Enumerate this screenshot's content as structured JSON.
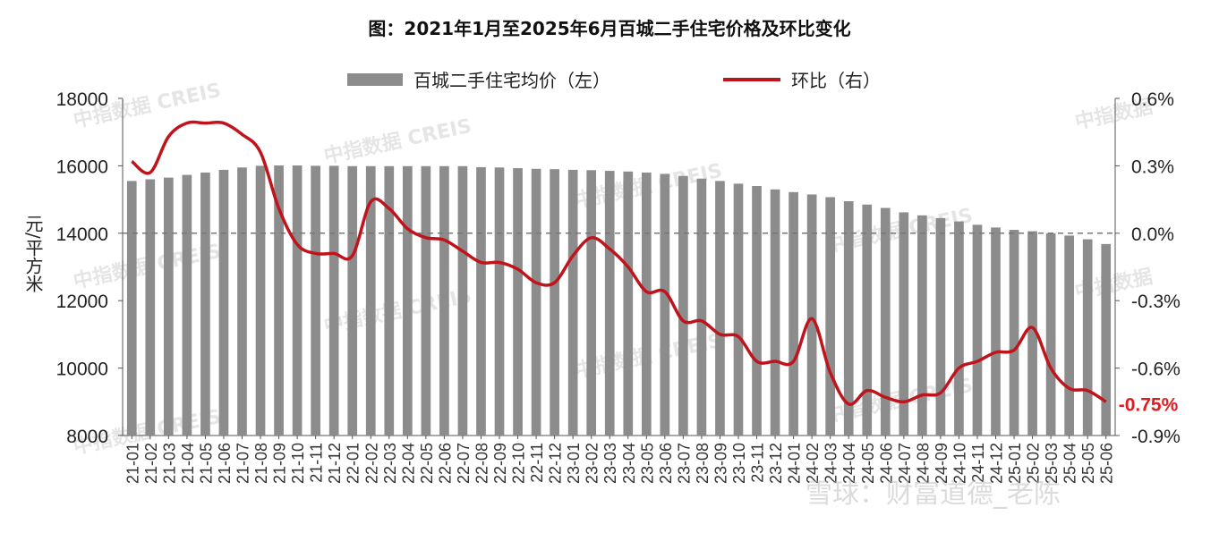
{
  "chart_data": {
    "type": "bar+line",
    "title": "图：2021年1月至2025年6月百城二手住宅价格及环比变化",
    "ylabel_left": "元/平方米",
    "ylim_left": [
      8000,
      18000
    ],
    "ylim_right": [
      -0.9,
      0.6
    ],
    "yticks_left": [
      "8000",
      "10000",
      "12000",
      "14000",
      "16000",
      "18000"
    ],
    "yticks_right": [
      "-0.9%",
      "-0.6%",
      "-0.3%",
      "0.0%",
      "0.3%",
      "0.6%"
    ],
    "legend": [
      "百城二手住宅均价（左）",
      "环比（右）"
    ],
    "legend_position": "top",
    "categories": [
      "21-01",
      "21-02",
      "21-03",
      "21-04",
      "21-05",
      "21-06",
      "21-07",
      "21-08",
      "21-09",
      "21-10",
      "21-11",
      "21-12",
      "22-01",
      "22-02",
      "22-03",
      "22-04",
      "22-05",
      "22-06",
      "22-07",
      "22-08",
      "22-09",
      "22-10",
      "22-11",
      "22-12",
      "23-01",
      "23-02",
      "23-03",
      "23-04",
      "23-05",
      "23-06",
      "23-07",
      "23-08",
      "23-09",
      "23-10",
      "23-11",
      "23-12",
      "24-01",
      "24-02",
      "24-03",
      "24-04",
      "24-05",
      "24-06",
      "24-07",
      "24-08",
      "24-09",
      "24-10",
      "24-11",
      "24-12",
      "25-01",
      "25-02",
      "25-03",
      "25-04",
      "25-05",
      "25-06"
    ],
    "series": [
      {
        "name": "百城二手住宅均价（左）",
        "axis": "left",
        "color": "#8c8c8c",
        "values": [
          15550,
          15600,
          15650,
          15730,
          15800,
          15880,
          15950,
          16000,
          16010,
          16010,
          16000,
          16000,
          15990,
          15990,
          15990,
          15990,
          15990,
          15990,
          15990,
          15960,
          15950,
          15930,
          15910,
          15900,
          15880,
          15870,
          15850,
          15830,
          15800,
          15760,
          15700,
          15620,
          15550,
          15470,
          15400,
          15300,
          15220,
          15150,
          15070,
          14950,
          14850,
          14750,
          14620,
          14530,
          14450,
          14350,
          14250,
          14170,
          14100,
          14060,
          14000,
          13930,
          13820,
          13680
        ]
      },
      {
        "name": "环比（右）",
        "axis": "right",
        "color": "#c0141c",
        "values": [
          0.32,
          0.27,
          0.43,
          0.49,
          0.49,
          0.49,
          0.44,
          0.36,
          0.11,
          -0.05,
          -0.09,
          -0.09,
          -0.1,
          0.14,
          0.11,
          0.02,
          -0.02,
          -0.03,
          -0.08,
          -0.13,
          -0.13,
          -0.16,
          -0.22,
          -0.22,
          -0.1,
          -0.02,
          -0.07,
          -0.15,
          -0.26,
          -0.26,
          -0.39,
          -0.39,
          -0.45,
          -0.46,
          -0.57,
          -0.57,
          -0.57,
          -0.38,
          -0.62,
          -0.76,
          -0.7,
          -0.73,
          -0.75,
          -0.72,
          -0.71,
          -0.6,
          -0.57,
          -0.53,
          -0.52,
          -0.42,
          -0.6,
          -0.69,
          -0.7,
          -0.75
        ]
      }
    ],
    "annotation": "-0.75%",
    "annotation_color": "#e01b22",
    "baseline_dashed": "0.0%",
    "watermarks": [
      "中指数据 CREIS",
      "中指数据"
    ],
    "signature": "雪球：财富道德_老陈"
  }
}
